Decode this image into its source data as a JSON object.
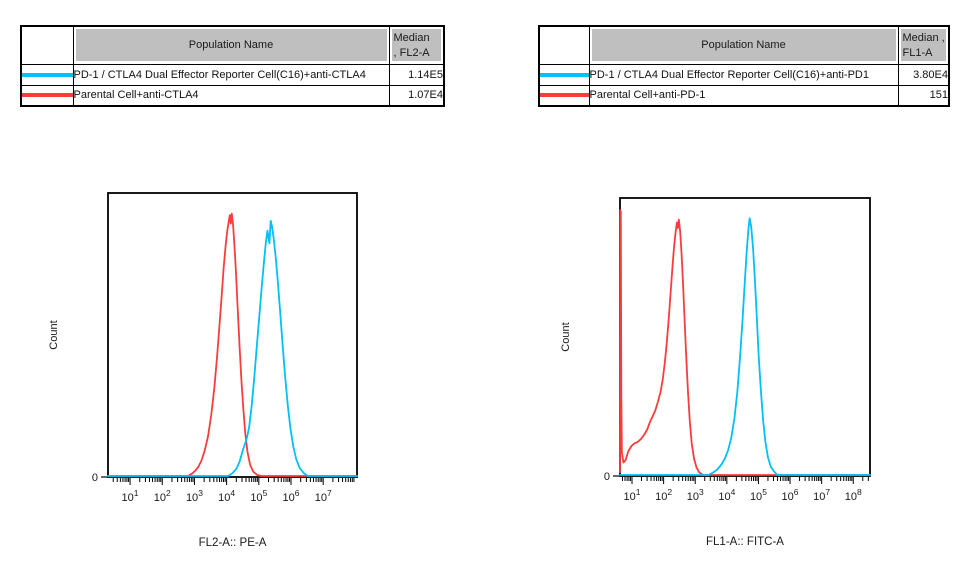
{
  "accent_colors": {
    "cyan": "#00C0F6",
    "red": "#FA3C3C",
    "table_header_gray": "#BFBFBF"
  },
  "tables": [
    {
      "header": {
        "population": "Population Name",
        "median_line1": "Median",
        "median_line2": ", FL2-A"
      },
      "rows": [
        {
          "color": "#00C0F6",
          "name": "PD-1 / CTLA4 Dual Effector Reporter Cell(C16)+anti-CTLA4",
          "value": "1.14E5"
        },
        {
          "color": "#FA3C3C",
          "name": "Parental Cell+anti-CTLA4",
          "value": "1.07E4"
        }
      ]
    },
    {
      "header": {
        "population": "Population Name",
        "median_line1": "Median ,",
        "median_line2": "FL1-A"
      },
      "rows": [
        {
          "color": "#00C0F6",
          "name": "PD-1 / CTLA4 Dual Effector Reporter Cell(C16)+anti-PD1",
          "value": "3.80E4"
        },
        {
          "color": "#FA3C3C",
          "name": "Parental Cell+anti-PD-1",
          "value": "151"
        }
      ]
    }
  ],
  "chart_data": [
    {
      "type": "line",
      "subtype": "flow-cytometry-histogram-overlay",
      "title": "",
      "xlabel": "FL2-A:: PE-A",
      "ylabel": "Count",
      "x_scale": "log10",
      "x_range_exp": [
        0.315,
        8.05
      ],
      "x_ticks_exp": [
        1,
        2,
        3,
        4,
        5,
        6,
        7
      ],
      "y_origin_label": "0",
      "grid": false,
      "legend": false,
      "units": "points are [log10(x), fraction_of_y_axis_height]",
      "series": [
        {
          "name": "Parental Cell+anti-CTLA4",
          "color": "#FA3C3C",
          "median": "1.07E4",
          "points": [
            [
              0.315,
              0
            ],
            [
              2.8,
              0
            ],
            [
              2.92,
              0.008
            ],
            [
              3.02,
              0.018
            ],
            [
              3.12,
              0.032
            ],
            [
              3.22,
              0.055
            ],
            [
              3.32,
              0.09
            ],
            [
              3.42,
              0.14
            ],
            [
              3.52,
              0.215
            ],
            [
              3.62,
              0.315
            ],
            [
              3.7,
              0.42
            ],
            [
              3.78,
              0.535
            ],
            [
              3.85,
              0.645
            ],
            [
              3.91,
              0.74
            ],
            [
              3.97,
              0.82
            ],
            [
              4.02,
              0.87
            ],
            [
              4.06,
              0.9
            ],
            [
              4.1,
              0.925
            ],
            [
              4.13,
              0.895
            ],
            [
              4.16,
              0.93
            ],
            [
              4.2,
              0.89
            ],
            [
              4.24,
              0.82
            ],
            [
              4.29,
              0.72
            ],
            [
              4.34,
              0.6
            ],
            [
              4.4,
              0.465
            ],
            [
              4.46,
              0.34
            ],
            [
              4.52,
              0.235
            ],
            [
              4.58,
              0.15
            ],
            [
              4.65,
              0.085
            ],
            [
              4.73,
              0.04
            ],
            [
              4.83,
              0.015
            ],
            [
              4.95,
              0.004
            ],
            [
              5.06,
              0
            ],
            [
              8.05,
              0
            ]
          ]
        },
        {
          "name": "PD-1 / CTLA4 Dual Effector Reporter Cell(C16)+anti-CTLA4",
          "color": "#00C0F6",
          "median": "1.14E5",
          "points": [
            [
              0.315,
              0
            ],
            [
              4.05,
              0
            ],
            [
              4.18,
              0.01
            ],
            [
              4.3,
              0.025
            ],
            [
              4.4,
              0.05
            ],
            [
              4.5,
              0.09
            ],
            [
              4.57,
              0.115
            ],
            [
              4.63,
              0.135
            ],
            [
              4.7,
              0.175
            ],
            [
              4.78,
              0.25
            ],
            [
              4.86,
              0.35
            ],
            [
              4.94,
              0.465
            ],
            [
              5.02,
              0.575
            ],
            [
              5.09,
              0.67
            ],
            [
              5.16,
              0.76
            ],
            [
              5.22,
              0.83
            ],
            [
              5.27,
              0.87
            ],
            [
              5.3,
              0.845
            ],
            [
              5.33,
              0.825
            ],
            [
              5.37,
              0.905
            ],
            [
              5.41,
              0.885
            ],
            [
              5.46,
              0.845
            ],
            [
              5.52,
              0.78
            ],
            [
              5.59,
              0.69
            ],
            [
              5.66,
              0.585
            ],
            [
              5.74,
              0.465
            ],
            [
              5.82,
              0.35
            ],
            [
              5.9,
              0.25
            ],
            [
              5.98,
              0.17
            ],
            [
              6.07,
              0.105
            ],
            [
              6.16,
              0.06
            ],
            [
              6.27,
              0.028
            ],
            [
              6.4,
              0.01
            ],
            [
              6.52,
              0
            ],
            [
              8.05,
              0
            ]
          ]
        }
      ]
    },
    {
      "type": "line",
      "subtype": "flow-cytometry-histogram-overlay",
      "title": "",
      "xlabel": "FL1-A:: FITC-A",
      "ylabel": "Count",
      "x_scale": "log10",
      "x_range_exp": [
        0.62,
        8.53
      ],
      "x_ticks_exp": [
        1,
        2,
        3,
        4,
        5,
        6,
        7,
        8
      ],
      "y_origin_label": "0",
      "grid": false,
      "legend": false,
      "units": "points are [log10(x), fraction_of_y_axis_height]",
      "series": [
        {
          "name": "Parental Cell+anti-PD-1",
          "color": "#FA3C3C",
          "median": "151",
          "points": [
            [
              0.62,
              0.01
            ],
            [
              0.63,
              0.96
            ],
            [
              0.645,
              0.955
            ],
            [
              0.66,
              0.3
            ],
            [
              0.68,
              0.08
            ],
            [
              0.73,
              0.045
            ],
            [
              0.8,
              0.055
            ],
            [
              0.88,
              0.085
            ],
            [
              0.98,
              0.105
            ],
            [
              1.08,
              0.115
            ],
            [
              1.18,
              0.12
            ],
            [
              1.28,
              0.13
            ],
            [
              1.38,
              0.145
            ],
            [
              1.48,
              0.165
            ],
            [
              1.58,
              0.195
            ],
            [
              1.66,
              0.215
            ],
            [
              1.74,
              0.235
            ],
            [
              1.82,
              0.265
            ],
            [
              1.9,
              0.3
            ],
            [
              1.97,
              0.345
            ],
            [
              2.04,
              0.41
            ],
            [
              2.1,
              0.48
            ],
            [
              2.16,
              0.565
            ],
            [
              2.22,
              0.66
            ],
            [
              2.28,
              0.755
            ],
            [
              2.33,
              0.825
            ],
            [
              2.38,
              0.88
            ],
            [
              2.42,
              0.915
            ],
            [
              2.45,
              0.895
            ],
            [
              2.48,
              0.925
            ],
            [
              2.52,
              0.885
            ],
            [
              2.57,
              0.8
            ],
            [
              2.62,
              0.68
            ],
            [
              2.67,
              0.545
            ],
            [
              2.72,
              0.415
            ],
            [
              2.77,
              0.3
            ],
            [
              2.83,
              0.195
            ],
            [
              2.89,
              0.115
            ],
            [
              2.96,
              0.06
            ],
            [
              3.04,
              0.027
            ],
            [
              3.13,
              0.009
            ],
            [
              3.24,
              0
            ],
            [
              8.53,
              0
            ]
          ]
        },
        {
          "name": "PD-1 / CTLA4 Dual Effector Reporter Cell(C16)+anti-PD1",
          "color": "#00C0F6",
          "median": "3.80E4",
          "points": [
            [
              0.62,
              0
            ],
            [
              3.42,
              0
            ],
            [
              3.55,
              0.008
            ],
            [
              3.7,
              0.02
            ],
            [
              3.83,
              0.038
            ],
            [
              3.94,
              0.06
            ],
            [
              4.04,
              0.09
            ],
            [
              4.14,
              0.135
            ],
            [
              4.24,
              0.205
            ],
            [
              4.33,
              0.3
            ],
            [
              4.42,
              0.43
            ],
            [
              4.5,
              0.565
            ],
            [
              4.57,
              0.7
            ],
            [
              4.63,
              0.81
            ],
            [
              4.68,
              0.885
            ],
            [
              4.72,
              0.93
            ],
            [
              4.77,
              0.9
            ],
            [
              4.83,
              0.82
            ],
            [
              4.89,
              0.7
            ],
            [
              4.95,
              0.565
            ],
            [
              5.01,
              0.43
            ],
            [
              5.08,
              0.3
            ],
            [
              5.15,
              0.195
            ],
            [
              5.22,
              0.12
            ],
            [
              5.3,
              0.065
            ],
            [
              5.39,
              0.03
            ],
            [
              5.5,
              0.012
            ],
            [
              5.6,
              0
            ],
            [
              8.53,
              0
            ]
          ]
        }
      ]
    }
  ]
}
